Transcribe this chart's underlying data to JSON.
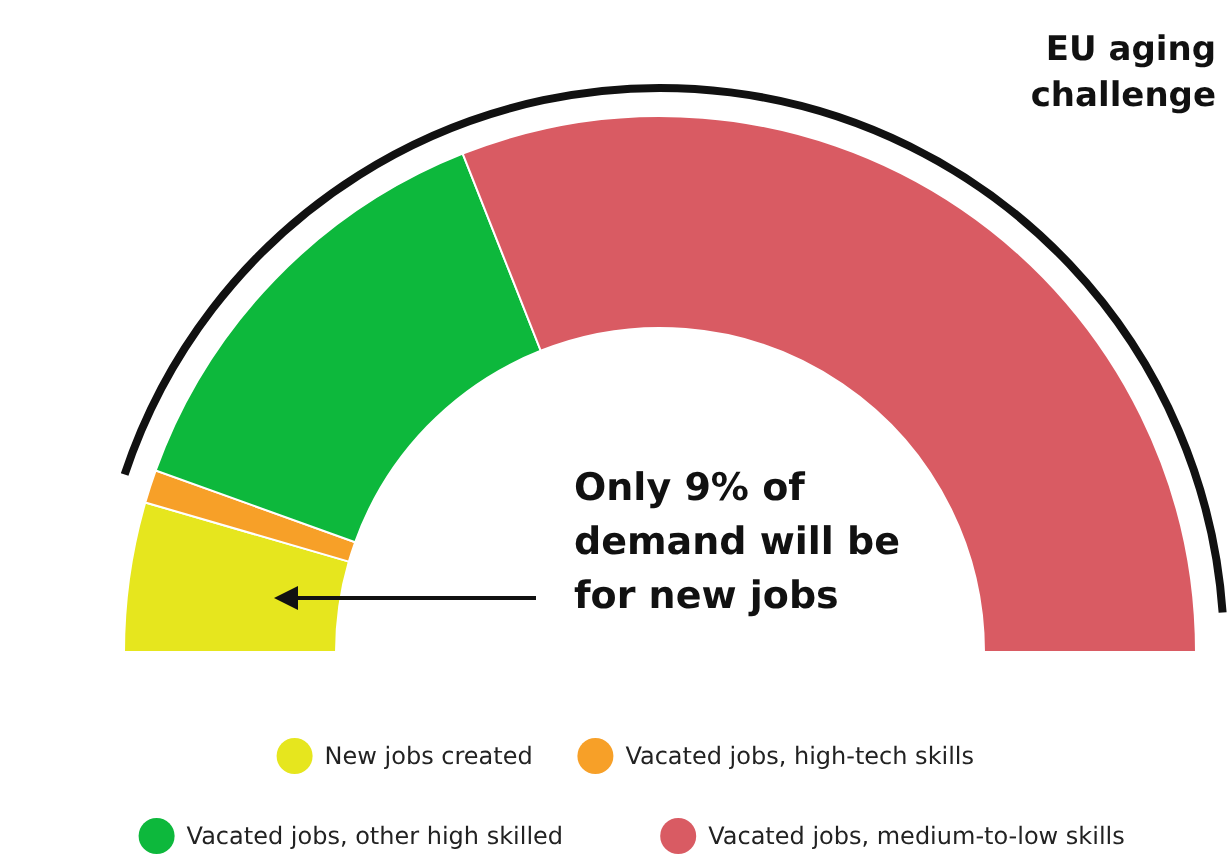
{
  "chart_data": {
    "type": "donut",
    "categories": [
      "New jobs created",
      "Vacated jobs, high-tech skills",
      "Vacated jobs, other high skilled",
      "Vacated jobs, medium-to-low skills"
    ],
    "values": [
      9,
      2,
      27,
      62
    ],
    "colors": [
      "#e6e61e",
      "#f7a028",
      "#0db83c",
      "#d95b63"
    ],
    "annotations": [
      "EU aging challenge",
      "Only 9% of demand will be for new jobs"
    ],
    "legend": "bottom"
  }
}
